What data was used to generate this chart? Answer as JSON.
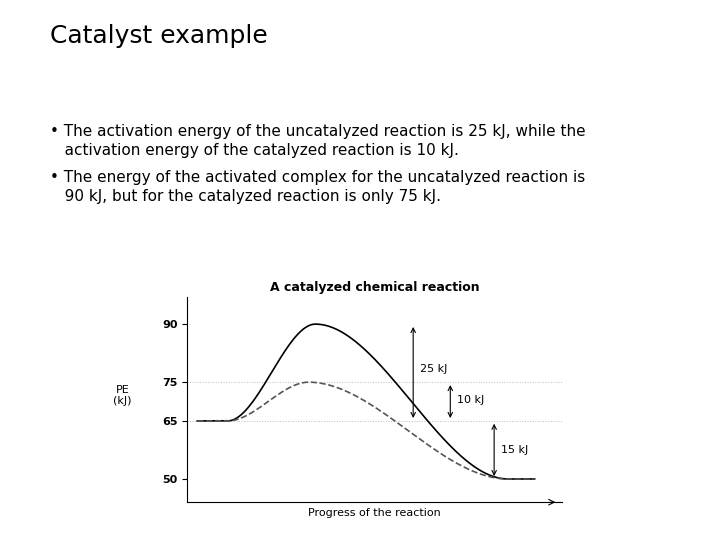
{
  "title": "Catalyst example",
  "bullet1_line1": "• The activation energy of the uncatalyzed reaction is 25 kJ, while the",
  "bullet1_line2": "   activation energy of the catalyzed reaction is 10 kJ.",
  "bullet2_line1": "• The energy of the activated complex for the uncatalyzed reaction is",
  "bullet2_line2": "   90 kJ, but for the catalyzed reaction is only 75 kJ.",
  "chart_title": "A catalyzed chemical reaction",
  "xlabel": "Progress of the reaction",
  "ylabel_line1": "PE",
  "ylabel_line2": "(kJ)",
  "yticks": [
    50,
    65,
    75,
    90
  ],
  "ylim": [
    44,
    97
  ],
  "xlim": [
    -0.3,
    10.8
  ],
  "background_color": "#ffffff",
  "line_color_uncatalyzed": "#000000",
  "line_color_catalyzed": "#555555",
  "grid_color": "#bbbbbb",
  "annotation_25kJ": "25 kJ",
  "annotation_10kJ": "10 kJ",
  "annotation_15kJ": "15 kJ",
  "reactant_energy": 65,
  "product_energy": 50,
  "uncatalyzed_peak": 90,
  "catalyzed_peak": 75,
  "title_fontsize": 18,
  "bullet_fontsize": 11,
  "chart_title_fontsize": 9,
  "axis_fontsize": 8,
  "annot_fontsize": 8
}
